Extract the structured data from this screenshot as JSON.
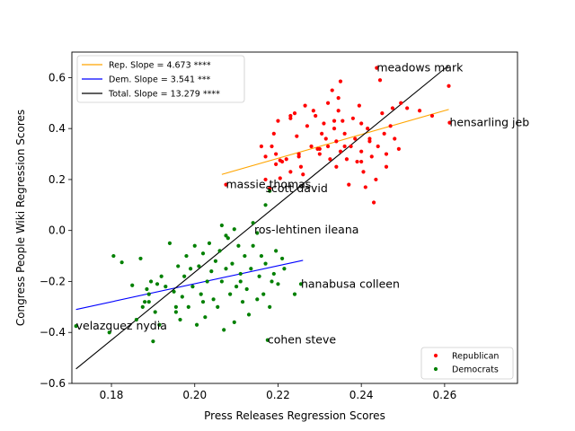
{
  "chart_data": {
    "type": "scatter",
    "xlabel": "Press Releases Regression Scores",
    "ylabel": "Congress People Wiki Regression Scores",
    "xlim": [
      0.1705,
      0.2775
    ],
    "ylim": [
      -0.6,
      0.7
    ],
    "xticks": [
      {
        "v": 0.18,
        "label": "0.18"
      },
      {
        "v": 0.2,
        "label": "0.20"
      },
      {
        "v": 0.22,
        "label": "0.22"
      },
      {
        "v": 0.24,
        "label": "0.24"
      },
      {
        "v": 0.26,
        "label": "0.26"
      }
    ],
    "yticks": [
      {
        "v": -0.6,
        "label": "−0.6"
      },
      {
        "v": -0.4,
        "label": "−0.4"
      },
      {
        "v": -0.2,
        "label": "−0.2"
      },
      {
        "v": 0.0,
        "label": "0.0"
      },
      {
        "v": 0.2,
        "label": "0.2"
      },
      {
        "v": 0.4,
        "label": "0.4"
      },
      {
        "v": 0.6,
        "label": "0.6"
      }
    ],
    "grid": false,
    "lines_legend_placement": "upper-left",
    "points_legend_placement": "lower-right",
    "lines": [
      {
        "name": "Rep. Slope = 4.673 ****",
        "color": "#ffa500",
        "x": [
          0.2065,
          0.261
        ],
        "y": [
          0.22,
          0.475
        ]
      },
      {
        "name": "Dem. Slope = 3.541 ***",
        "color": "#0000ff",
        "x": [
          0.1715,
          0.226
        ],
        "y": [
          -0.31,
          -0.117
        ]
      },
      {
        "name": "Total. Slope = 13.279 ****",
        "color": "#000000",
        "x": [
          0.1715,
          0.261
        ],
        "y": [
          -0.543,
          0.648
        ]
      }
    ],
    "series": [
      {
        "name": "Republican",
        "color": "#ff0000",
        "points": [
          [
            0.2437,
            0.638
          ],
          [
            0.2612,
            0.423
          ],
          [
            0.261,
            0.567
          ],
          [
            0.2205,
            0.205
          ],
          [
            0.2075,
            0.18
          ],
          [
            0.218,
            0.165
          ],
          [
            0.217,
            0.2
          ],
          [
            0.216,
            0.33
          ],
          [
            0.217,
            0.29
          ],
          [
            0.2185,
            0.33
          ],
          [
            0.2195,
            0.3
          ],
          [
            0.2205,
            0.275
          ],
          [
            0.2195,
            0.26
          ],
          [
            0.221,
            0.27
          ],
          [
            0.22,
            0.43
          ],
          [
            0.219,
            0.38
          ],
          [
            0.222,
            0.28
          ],
          [
            0.223,
            0.23
          ],
          [
            0.223,
            0.45
          ],
          [
            0.223,
            0.44
          ],
          [
            0.224,
            0.46
          ],
          [
            0.2245,
            0.37
          ],
          [
            0.225,
            0.3
          ],
          [
            0.2255,
            0.25
          ],
          [
            0.226,
            0.22
          ],
          [
            0.2265,
            0.49
          ],
          [
            0.227,
            0.41
          ],
          [
            0.228,
            0.33
          ],
          [
            0.2285,
            0.47
          ],
          [
            0.229,
            0.45
          ],
          [
            0.2295,
            0.32
          ],
          [
            0.23,
            0.3
          ],
          [
            0.2305,
            0.38
          ],
          [
            0.231,
            0.42
          ],
          [
            0.2315,
            0.36
          ],
          [
            0.232,
            0.5
          ],
          [
            0.232,
            0.33
          ],
          [
            0.2325,
            0.28
          ],
          [
            0.233,
            0.55
          ],
          [
            0.2335,
            0.4
          ],
          [
            0.234,
            0.35
          ],
          [
            0.234,
            0.25
          ],
          [
            0.2345,
            0.52
          ],
          [
            0.2345,
            0.47
          ],
          [
            0.235,
            0.31
          ],
          [
            0.2355,
            0.43
          ],
          [
            0.236,
            0.38
          ],
          [
            0.2365,
            0.28
          ],
          [
            0.237,
            0.18
          ],
          [
            0.2375,
            0.33
          ],
          [
            0.238,
            0.44
          ],
          [
            0.2385,
            0.36
          ],
          [
            0.239,
            0.27
          ],
          [
            0.2395,
            0.49
          ],
          [
            0.24,
            0.42
          ],
          [
            0.24,
            0.31
          ],
          [
            0.2405,
            0.23
          ],
          [
            0.241,
            0.17
          ],
          [
            0.2415,
            0.4
          ],
          [
            0.242,
            0.35
          ],
          [
            0.2425,
            0.29
          ],
          [
            0.243,
            0.11
          ],
          [
            0.2435,
            0.2
          ],
          [
            0.244,
            0.33
          ],
          [
            0.2445,
            0.59
          ],
          [
            0.245,
            0.46
          ],
          [
            0.2455,
            0.38
          ],
          [
            0.246,
            0.25
          ],
          [
            0.246,
            0.3
          ],
          [
            0.247,
            0.41
          ],
          [
            0.2475,
            0.48
          ],
          [
            0.248,
            0.36
          ],
          [
            0.249,
            0.32
          ],
          [
            0.2495,
            0.5
          ],
          [
            0.251,
            0.48
          ],
          [
            0.254,
            0.47
          ],
          [
            0.257,
            0.45
          ],
          [
            0.235,
            0.585
          ],
          [
            0.2335,
            0.43
          ],
          [
            0.23,
            0.32
          ],
          [
            0.225,
            0.29
          ],
          [
            0.24,
            0.27
          ],
          [
            0.242,
            0.36
          ],
          [
            0.236,
            0.33
          ]
        ]
      },
      {
        "name": "Democrats",
        "color": "#008000",
        "points": [
          [
            0.1715,
            -0.375
          ],
          [
            0.1795,
            -0.4
          ],
          [
            0.1805,
            -0.1
          ],
          [
            0.1825,
            -0.125
          ],
          [
            0.185,
            -0.215
          ],
          [
            0.186,
            -0.35
          ],
          [
            0.187,
            -0.11
          ],
          [
            0.1875,
            -0.3
          ],
          [
            0.188,
            -0.28
          ],
          [
            0.1885,
            -0.23
          ],
          [
            0.189,
            -0.25
          ],
          [
            0.1895,
            -0.2
          ],
          [
            0.19,
            -0.435
          ],
          [
            0.1905,
            -0.32
          ],
          [
            0.191,
            -0.21
          ],
          [
            0.1915,
            -0.37
          ],
          [
            0.192,
            -0.18
          ],
          [
            0.193,
            -0.22
          ],
          [
            0.194,
            -0.05
          ],
          [
            0.195,
            -0.24
          ],
          [
            0.1955,
            -0.32
          ],
          [
            0.196,
            -0.14
          ],
          [
            0.1965,
            -0.35
          ],
          [
            0.197,
            -0.26
          ],
          [
            0.1975,
            -0.18
          ],
          [
            0.198,
            -0.1
          ],
          [
            0.1985,
            -0.3
          ],
          [
            0.199,
            -0.15
          ],
          [
            0.1995,
            -0.22
          ],
          [
            0.2,
            -0.06
          ],
          [
            0.2005,
            -0.37
          ],
          [
            0.201,
            -0.14
          ],
          [
            0.2015,
            -0.25
          ],
          [
            0.202,
            -0.09
          ],
          [
            0.2025,
            -0.34
          ],
          [
            0.203,
            -0.2
          ],
          [
            0.2035,
            -0.05
          ],
          [
            0.204,
            -0.16
          ],
          [
            0.2045,
            -0.27
          ],
          [
            0.205,
            -0.12
          ],
          [
            0.2055,
            -0.3
          ],
          [
            0.206,
            -0.08
          ],
          [
            0.2065,
            -0.2
          ],
          [
            0.207,
            -0.39
          ],
          [
            0.2075,
            -0.15
          ],
          [
            0.208,
            -0.03
          ],
          [
            0.2085,
            -0.25
          ],
          [
            0.209,
            -0.13
          ],
          [
            0.2095,
            -0.36
          ],
          [
            0.21,
            -0.22
          ],
          [
            0.2105,
            -0.06
          ],
          [
            0.211,
            -0.17
          ],
          [
            0.2115,
            -0.28
          ],
          [
            0.212,
            -0.1
          ],
          [
            0.2125,
            -0.23
          ],
          [
            0.213,
            -0.33
          ],
          [
            0.2135,
            -0.15
          ],
          [
            0.214,
            -0.06
          ],
          [
            0.215,
            -0.27
          ],
          [
            0.2155,
            -0.18
          ],
          [
            0.216,
            -0.1
          ],
          [
            0.2165,
            -0.25
          ],
          [
            0.217,
            -0.13
          ],
          [
            0.2175,
            -0.43
          ],
          [
            0.218,
            -0.3
          ],
          [
            0.219,
            -0.17
          ],
          [
            0.2195,
            -0.08
          ],
          [
            0.22,
            -0.21
          ],
          [
            0.221,
            -0.11
          ],
          [
            0.2215,
            -0.15
          ],
          [
            0.224,
            -0.25
          ],
          [
            0.2255,
            -0.21
          ],
          [
            0.2065,
            0.02
          ],
          [
            0.2095,
            0.005
          ],
          [
            0.214,
            0.03
          ],
          [
            0.215,
            -0.01
          ],
          [
            0.218,
            0.155
          ],
          [
            0.217,
            0.1
          ],
          [
            0.2075,
            -0.02
          ],
          [
            0.189,
            -0.28
          ],
          [
            0.1955,
            -0.3
          ],
          [
            0.202,
            -0.28
          ],
          [
            0.211,
            -0.2
          ],
          [
            0.2185,
            -0.2
          ]
        ]
      }
    ],
    "annotations": [
      {
        "text": "meadows mark",
        "x": 0.2437,
        "y": 0.638
      },
      {
        "text": "hensarling jeb",
        "x": 0.2612,
        "y": 0.423
      },
      {
        "text": "massie thomas",
        "x": 0.2075,
        "y": 0.18
      },
      {
        "text": "scott david",
        "x": 0.217,
        "y": 0.165
      },
      {
        "text": "ros-lehtinen ileana",
        "x": 0.2143,
        "y": 0.002
      },
      {
        "text": "hanabusa colleen",
        "x": 0.2255,
        "y": -0.21
      },
      {
        "text": "velazquez nydia",
        "x": 0.1715,
        "y": -0.375
      },
      {
        "text": "cohen steve",
        "x": 0.2175,
        "y": -0.43
      }
    ]
  }
}
